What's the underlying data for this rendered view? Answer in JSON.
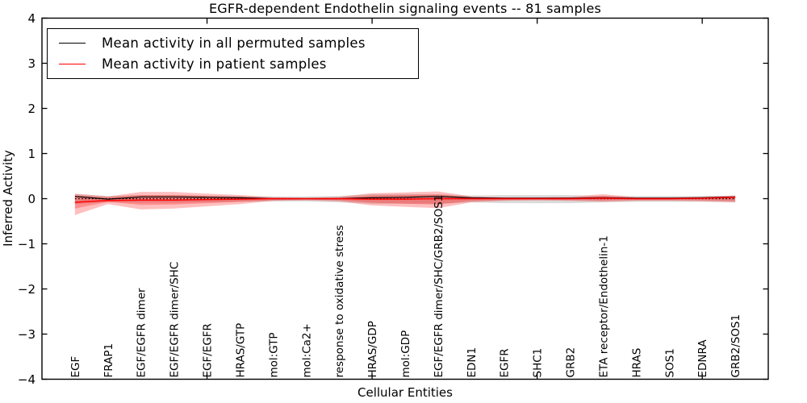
{
  "chart_data": {
    "type": "line",
    "title": "EGFR-dependent Endothelin signaling events -- 81 samples",
    "xlabel": "Cellular Entities",
    "ylabel": "Inferred Activity",
    "xlim": [
      0,
      22
    ],
    "ylim": [
      -4,
      4
    ],
    "grid": false,
    "xticks": [
      0,
      5,
      10,
      15,
      20
    ],
    "yticks": {
      "values": [
        -4,
        -3,
        -2,
        -1,
        0,
        1,
        2,
        3,
        4
      ],
      "labels": [
        "−4",
        "−3",
        "−2",
        "−1",
        "0",
        "1",
        "2",
        "3",
        "4"
      ]
    },
    "categories": [
      "EGF",
      "FRAP1",
      "EGF/EGFR dimer",
      "EGF/EGFR dimer/SHC",
      "EGF/EGFR",
      "HRAS/GTP",
      "mol:GTP",
      "mol:Ca2+",
      "response to oxidative stress",
      "HRAS/GDP",
      "mol:GDP",
      "EGF/EGFR dimer/SHC/GRB2/SOS1",
      "EDN1",
      "EGFR",
      "SHC1",
      "GRB2",
      "ETA receptor/Endothelin-1",
      "HRAS",
      "SOS1",
      "EDNRA",
      "GRB2/SOS1"
    ],
    "legend": {
      "position": "upper left",
      "items": [
        {
          "label": "Mean activity in all permuted samples",
          "color": "#000000"
        },
        {
          "label": "Mean activity in patient samples",
          "color": "#ff0000"
        }
      ]
    },
    "series": [
      {
        "name": "Mean activity in all permuted samples",
        "color": "#000000",
        "line_width": 1.2,
        "values": [
          0.05,
          -0.01,
          0.04,
          0.04,
          0.03,
          0.02,
          0.0,
          0.0,
          0.0,
          0.02,
          0.03,
          0.05,
          0.02,
          0.01,
          0.01,
          0.01,
          0.02,
          0.01,
          0.01,
          0.02,
          0.04
        ]
      },
      {
        "name": "Mean activity in patient samples",
        "color": "#ff0000",
        "line_width": 1.5,
        "values": [
          -0.08,
          -0.04,
          -0.03,
          -0.03,
          -0.02,
          -0.01,
          0.0,
          0.0,
          0.0,
          -0.01,
          -0.01,
          0.0,
          0.0,
          0.0,
          0.0,
          0.0,
          0.01,
          0.0,
          0.0,
          0.01,
          0.03
        ]
      }
    ],
    "bands": {
      "permuted_upper": [
        0.1,
        0.06,
        0.08,
        0.08,
        0.07,
        0.06,
        0.05,
        0.05,
        0.06,
        0.1,
        0.1,
        0.1,
        0.07,
        0.08,
        0.08,
        0.08,
        0.06,
        0.06,
        0.06,
        0.06,
        0.07
      ],
      "permuted_lower": [
        -0.12,
        -0.08,
        -0.09,
        -0.09,
        -0.08,
        -0.07,
        -0.06,
        -0.06,
        -0.08,
        -0.11,
        -0.11,
        -0.11,
        -0.08,
        -0.1,
        -0.1,
        -0.1,
        -0.08,
        -0.07,
        -0.07,
        -0.07,
        -0.08
      ],
      "patient_outer_upper": [
        0.11,
        0.05,
        0.15,
        0.15,
        0.11,
        0.08,
        0.03,
        0.02,
        0.04,
        0.12,
        0.14,
        0.16,
        0.05,
        0.03,
        0.03,
        0.04,
        0.1,
        0.03,
        0.03,
        0.04,
        0.07
      ],
      "patient_outer_lower": [
        -0.36,
        -0.12,
        -0.24,
        -0.22,
        -0.17,
        -0.12,
        -0.05,
        -0.04,
        -0.06,
        -0.15,
        -0.18,
        -0.21,
        -0.08,
        -0.05,
        -0.04,
        -0.05,
        -0.07,
        -0.05,
        -0.05,
        -0.06,
        -0.08
      ],
      "patient_inner_upper": [
        0.07,
        0.03,
        0.08,
        0.08,
        0.06,
        0.04,
        0.015,
        0.01,
        0.02,
        0.07,
        0.08,
        0.09,
        0.03,
        0.015,
        0.015,
        0.02,
        0.06,
        0.015,
        0.015,
        0.02,
        0.04
      ],
      "patient_inner_lower": [
        -0.22,
        -0.07,
        -0.14,
        -0.13,
        -0.1,
        -0.07,
        -0.03,
        -0.02,
        -0.035,
        -0.09,
        -0.11,
        -0.13,
        -0.05,
        -0.03,
        -0.02,
        -0.03,
        -0.04,
        -0.03,
        -0.03,
        -0.035,
        -0.05
      ]
    },
    "zero_line": {
      "style": "dotted",
      "color": "#000000"
    },
    "colors": {
      "patient_band": "rgba(255,0,0,0.25)",
      "permuted_band": "rgba(125,125,125,0.28)",
      "frame": "#000000"
    }
  }
}
